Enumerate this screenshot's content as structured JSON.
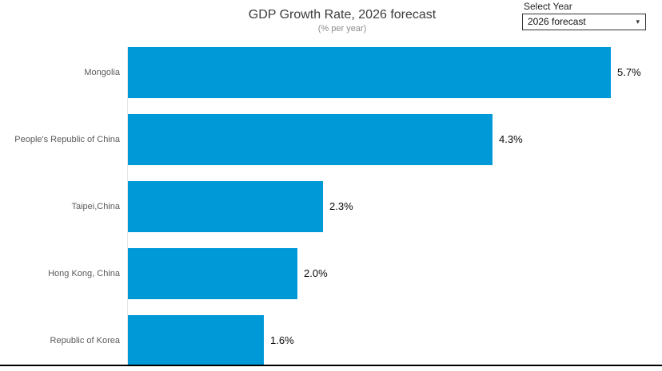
{
  "header": {
    "title": "GDP Growth Rate, 2026 forecast",
    "subtitle": "(% per year)"
  },
  "year_selector": {
    "label": "Select Year",
    "selected": "2026 forecast",
    "arrow_icon": "▾"
  },
  "chart_data": {
    "type": "bar",
    "orientation": "horizontal",
    "title": "GDP Growth Rate, 2026 forecast",
    "subtitle": "(% per year)",
    "categories": [
      "Mongolia",
      "People's Republic of China",
      "Taipei,China",
      "Hong Kong, China",
      "Republic of Korea"
    ],
    "values": [
      5.7,
      4.3,
      2.3,
      2.0,
      1.6
    ],
    "value_labels": [
      "5.7%",
      "4.3%",
      "2.3%",
      "2.0%",
      "1.6%"
    ],
    "xlabel": "",
    "ylabel": "",
    "xlim": [
      0,
      6.3
    ],
    "grid": false,
    "legend": false,
    "value_label_position": "outside-end",
    "bar_color": "#0099d8"
  },
  "colors": {
    "bar": "#0099d8",
    "axis_line": "#000000",
    "category_label": "#5a5a5a",
    "value_label": "#0a0a0a",
    "title": "#3c3c3c",
    "subtitle": "#8c8c8c"
  }
}
